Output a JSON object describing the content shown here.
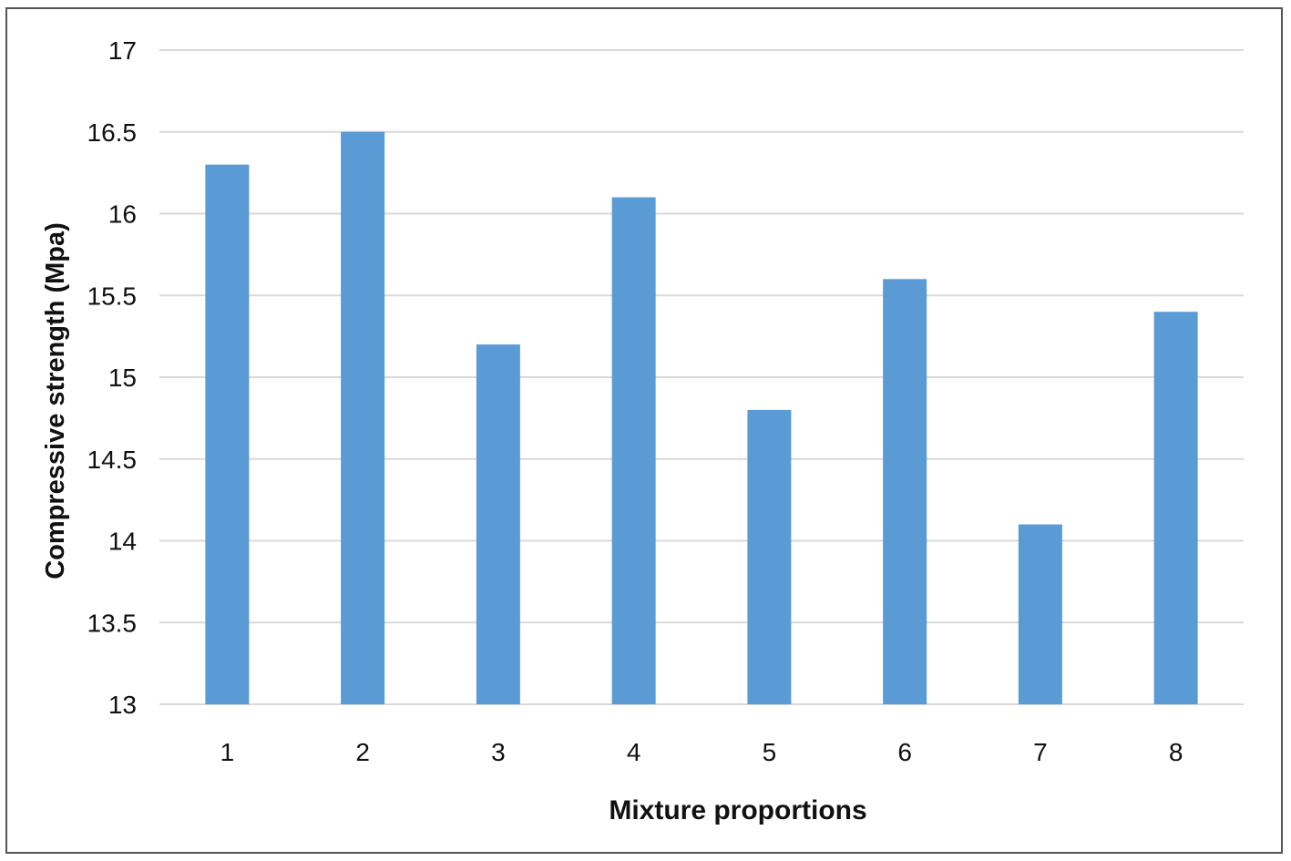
{
  "chart_data": {
    "type": "bar",
    "title": "",
    "xlabel": "Mixture proportions",
    "ylabel": "Compressive strength (Mpa)",
    "categories": [
      "1",
      "2",
      "3",
      "4",
      "5",
      "6",
      "7",
      "8"
    ],
    "values": [
      16.3,
      16.5,
      15.2,
      16.1,
      14.8,
      15.6,
      14.1,
      15.4
    ],
    "ylim": [
      13,
      17
    ],
    "yticks": [
      "13",
      "13.5",
      "14",
      "14.5",
      "15",
      "15.5",
      "16",
      "16.5",
      "17"
    ],
    "grid": true,
    "legend": "none",
    "bar_color": "#5b9bd5",
    "grid_color": "#d9d9d9"
  }
}
